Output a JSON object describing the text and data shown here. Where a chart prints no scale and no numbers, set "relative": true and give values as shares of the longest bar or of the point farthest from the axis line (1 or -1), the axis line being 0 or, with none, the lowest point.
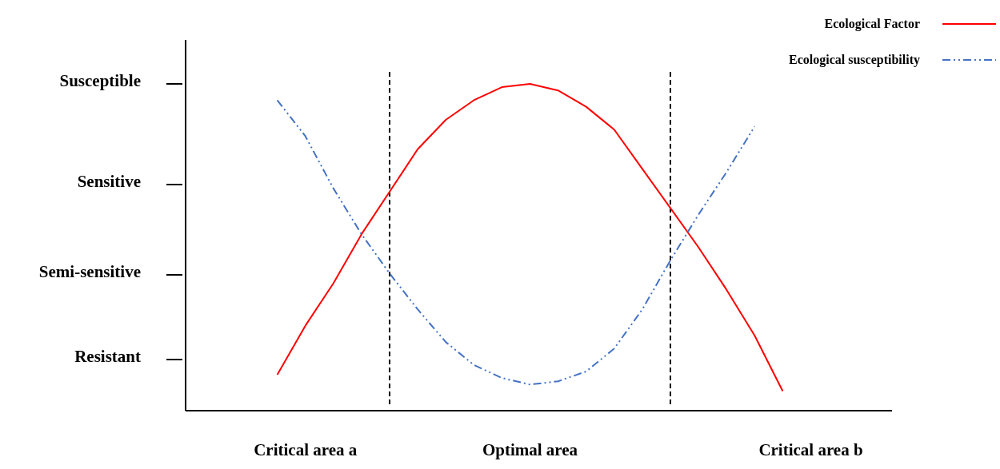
{
  "chart_data": {
    "type": "line",
    "relative": true,
    "categories": [
      null,
      null,
      null,
      null,
      "Critical area a",
      null,
      null,
      null,
      null,
      null,
      null,
      null,
      "Optimal area",
      null,
      null,
      null,
      null,
      null,
      null,
      null,
      null,
      null,
      "Critical area b",
      null,
      null
    ],
    "series": [
      {
        "name": "Ecological Factor",
        "color": "#ff0000",
        "line_style": "solid",
        "values": [
          null,
          null,
          null,
          0.11,
          0.26,
          0.39,
          0.54,
          0.67,
          0.8,
          0.89,
          0.95,
          0.99,
          1,
          0.98,
          0.93,
          0.86,
          0.74,
          0.62,
          0.5,
          0.37,
          0.23,
          0.06,
          null,
          null,
          null
        ]
      },
      {
        "name": "Ecological susceptibility",
        "color": "#4472c4",
        "line_style": "dashed",
        "values": [
          null,
          null,
          null,
          0.95,
          0.84,
          0.68,
          0.54,
          0.42,
          0.31,
          0.21,
          0.14,
          0.1,
          0.08,
          0.09,
          0.12,
          0.19,
          0.31,
          0.46,
          0.6,
          0.73,
          0.87,
          null,
          null,
          null,
          null
        ]
      }
    ],
    "annotations": [
      "Susceptible",
      "Sensitive",
      "Semi-sensitive",
      "Resistant"
    ],
    "legend": "top right",
    "marker": "none"
  }
}
